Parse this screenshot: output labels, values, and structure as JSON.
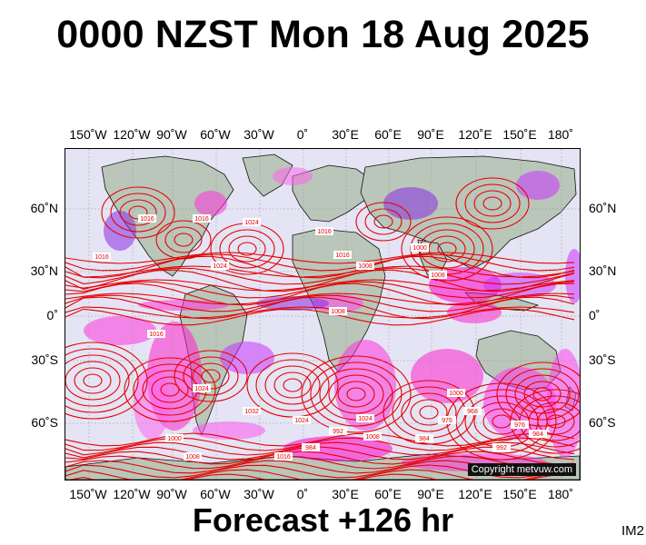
{
  "title": "0000 NZST Mon 18 Aug 2025",
  "subtitle": "Forecast +126 hr",
  "image_code": "IM2",
  "copyright": "Copyright metvuw.com",
  "lon_ticks": [
    "150˚W",
    "120˚W",
    "90˚W",
    "60˚W",
    "30˚W",
    "0˚",
    "30˚E",
    "60˚E",
    "90˚E",
    "120˚E",
    "150˚E",
    "180˚"
  ],
  "lat_ticks": [
    "60˚N",
    "30˚N",
    "0˚",
    "30˚S",
    "60˚S"
  ],
  "isobar_labels": [
    "1016",
    "1016",
    "1024",
    "1016",
    "1016",
    "1008",
    "1000",
    "1008",
    "1016",
    "1024",
    "1032",
    "1024",
    "1016",
    "1024",
    "1008",
    "992",
    "984",
    "976",
    "968",
    "1000",
    "1008",
    "984",
    "992",
    "976",
    "984",
    "1016",
    "1024",
    "1008",
    "1000"
  ],
  "colors": {
    "ocean": "#e4e4f4",
    "land": "#b9c6b9",
    "isobar": "#e60000",
    "precip_magenta": "#ff00cc",
    "precip_purple": "#8a2be2",
    "coast": "#111111"
  }
}
